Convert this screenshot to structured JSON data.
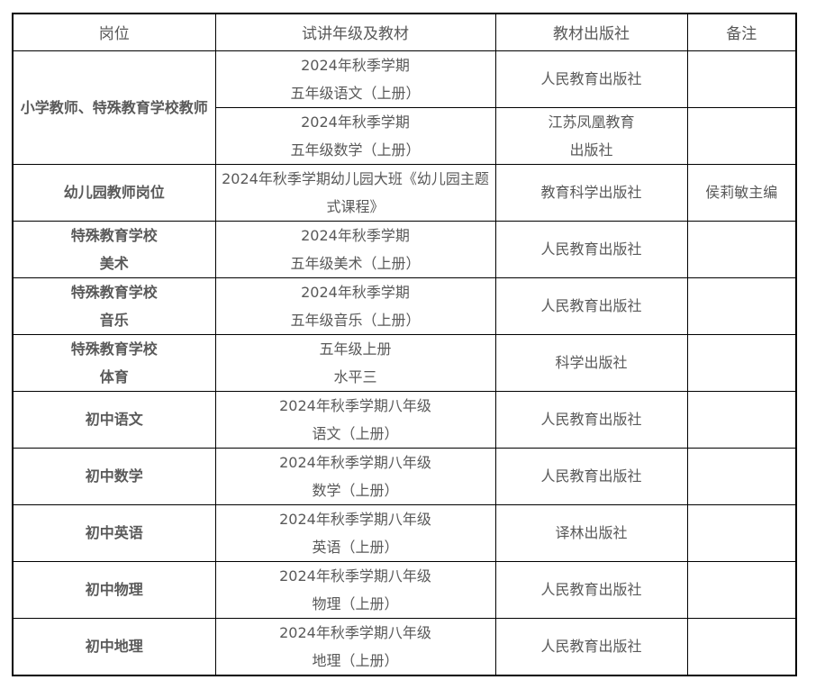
{
  "table": {
    "headers": [
      "岗位",
      "试讲年级及教材",
      "教材出版社",
      "备注"
    ],
    "rows": [
      {
        "position": {
          "lines": [
            "小学教师、特殊教育学校教师"
          ],
          "rowspan": 2
        },
        "material": [
          "2024年秋季学期",
          "五年级语文（上册）"
        ],
        "publisher": [
          "人民教育出版社"
        ],
        "note": ""
      },
      {
        "position": null,
        "material": [
          "2024年秋季学期",
          "五年级数学（上册）"
        ],
        "publisher": [
          "江苏凤凰教育",
          "出版社"
        ],
        "note": ""
      },
      {
        "position": {
          "lines": [
            "幼儿园教师岗位"
          ]
        },
        "material": [
          "2024年秋季学期幼儿园大班《幼儿园主题",
          "式课程》"
        ],
        "publisher": [
          "教育科学出版社"
        ],
        "note": "侯莉敏主编"
      },
      {
        "position": {
          "lines": [
            "特殊教育学校",
            "美术"
          ]
        },
        "material": [
          "2024年秋季学期",
          "五年级美术（上册）"
        ],
        "publisher": [
          "人民教育出版社"
        ],
        "note": ""
      },
      {
        "position": {
          "lines": [
            "特殊教育学校",
            "音乐"
          ]
        },
        "material": [
          "2024年秋季学期",
          "五年级音乐（上册）"
        ],
        "publisher": [
          "人民教育出版社"
        ],
        "note": ""
      },
      {
        "position": {
          "lines": [
            "特殊教育学校",
            "体育"
          ]
        },
        "material": [
          "五年级上册",
          "水平三"
        ],
        "publisher": [
          "科学出版社"
        ],
        "note": ""
      },
      {
        "position": {
          "lines": [
            "初中语文"
          ]
        },
        "material": [
          "2024年秋季学期八年级",
          "语文（上册）"
        ],
        "publisher": [
          "人民教育出版社"
        ],
        "note": ""
      },
      {
        "position": {
          "lines": [
            "初中数学"
          ]
        },
        "material": [
          "2024年秋季学期八年级",
          "数学（上册）"
        ],
        "publisher": [
          "人民教育出版社"
        ],
        "note": ""
      },
      {
        "position": {
          "lines": [
            "初中英语"
          ]
        },
        "material": [
          "2024年秋季学期八年级",
          "英语（上册）"
        ],
        "publisher": [
          "译林出版社"
        ],
        "note": ""
      },
      {
        "position": {
          "lines": [
            "初中物理"
          ]
        },
        "material": [
          "2024年秋季学期八年级",
          "物理（上册）"
        ],
        "publisher": [
          "人民教育出版社"
        ],
        "note": ""
      },
      {
        "position": {
          "lines": [
            "初中地理"
          ]
        },
        "material": [
          "2024年秋季学期八年级",
          "地理（上册）"
        ],
        "publisher": [
          "人民教育出版社"
        ],
        "note": ""
      }
    ],
    "colors": {
      "text": "#595959",
      "border": "#000000",
      "background": "#ffffff"
    }
  }
}
